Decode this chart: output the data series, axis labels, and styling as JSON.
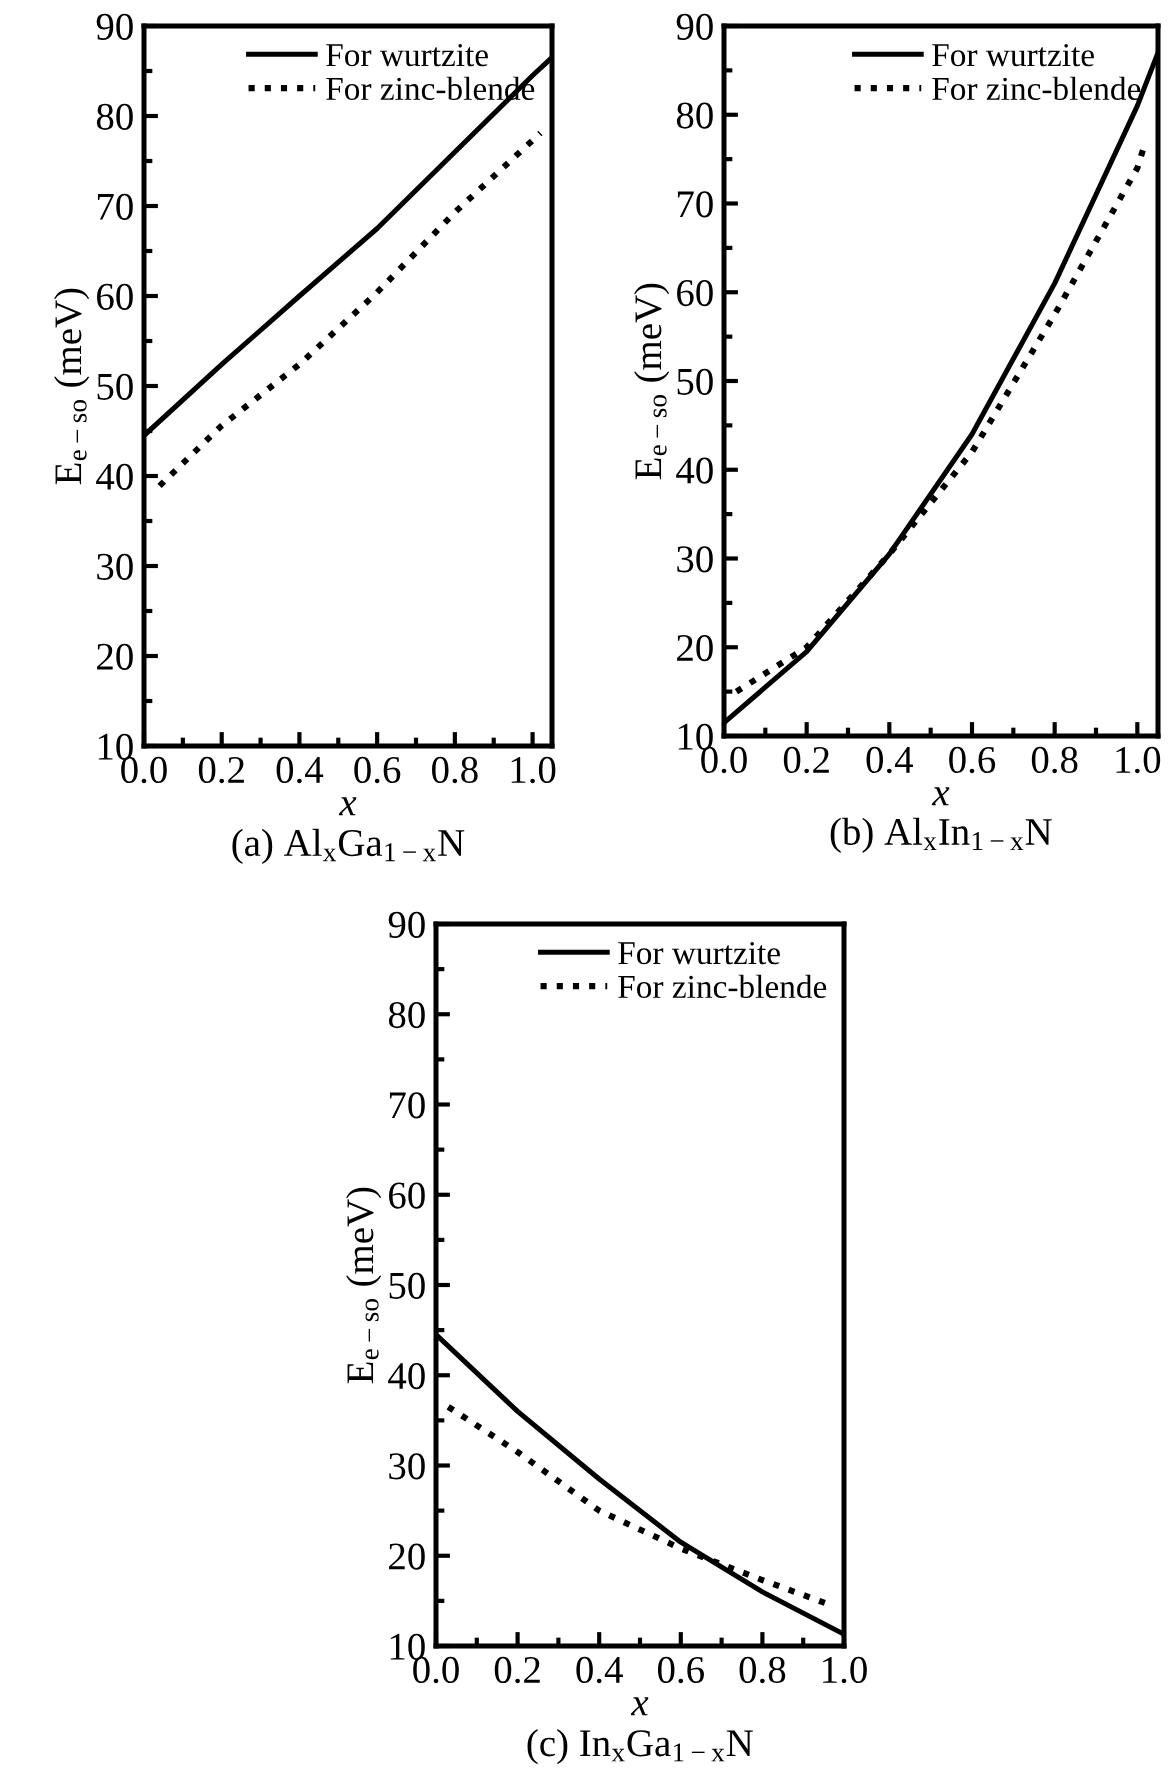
{
  "chart_data": [
    {
      "type": "line",
      "title": "(a) Al$_{x}$Ga$_{1−x}$N",
      "xlabel": "x",
      "ylabel": "E$_{e−so}$ (meV)",
      "xlim": [
        0,
        1.05
      ],
      "ylim": [
        10,
        90
      ],
      "xticks": [
        {
          "value": 0,
          "label": "0.0"
        },
        {
          "value": 0.1,
          "label": null
        },
        {
          "value": 0.2,
          "label": "0.2"
        },
        {
          "value": 0.3,
          "label": null
        },
        {
          "value": 0.4,
          "label": "0.4"
        },
        {
          "value": 0.5,
          "label": null
        },
        {
          "value": 0.6,
          "label": "0.6"
        },
        {
          "value": 0.7,
          "label": null
        },
        {
          "value": 0.8,
          "label": "0.8"
        },
        {
          "value": 0.9,
          "label": null
        },
        {
          "value": 1.0,
          "label": "1.0"
        }
      ],
      "yticks": [
        10,
        {
          "value": 15,
          "label": null
        },
        20,
        {
          "value": 25,
          "label": null
        },
        30,
        {
          "value": 35,
          "label": null
        },
        40,
        {
          "value": 45,
          "label": null
        },
        50,
        {
          "value": 55,
          "label": null
        },
        60,
        {
          "value": 65,
          "label": null
        },
        70,
        {
          "value": 75,
          "label": null
        },
        80,
        {
          "value": 85,
          "label": null
        },
        90
      ],
      "legend": "top right",
      "grid": false,
      "series": [
        {
          "name": "For wurtzite",
          "color": "#000000",
          "line_style": "solid",
          "x": [
            0,
            0.2,
            0.4,
            0.6,
            0.8,
            1.0,
            1.05
          ],
          "values": [
            44.5,
            52.4,
            60,
            67.5,
            76,
            84.5,
            86.5
          ]
        },
        {
          "name": "For zinc-blende",
          "color": "#000000",
          "line_style": "dotted",
          "x": [
            0.04,
            0.2,
            0.4,
            0.6,
            0.8,
            1.02
          ],
          "values": [
            38.9,
            45.6,
            52.4,
            60.4,
            69.3,
            78.1
          ]
        }
      ]
    },
    {
      "type": "line",
      "title": "(b) Al$_{x}$In$_{1−x}$N",
      "xlabel": "x",
      "ylabel": "E$_{e−so}$ (meV)",
      "xlim": [
        0,
        1.05
      ],
      "ylim": [
        10,
        90
      ],
      "xticks": [
        {
          "value": 0,
          "label": "0.0"
        },
        {
          "value": 0.1,
          "label": null
        },
        {
          "value": 0.2,
          "label": "0.2"
        },
        {
          "value": 0.3,
          "label": null
        },
        {
          "value": 0.4,
          "label": "0.4"
        },
        {
          "value": 0.5,
          "label": null
        },
        {
          "value": 0.6,
          "label": "0.6"
        },
        {
          "value": 0.7,
          "label": null
        },
        {
          "value": 0.8,
          "label": "0.8"
        },
        {
          "value": 0.9,
          "label": null
        },
        {
          "value": 1.0,
          "label": "1.0"
        }
      ],
      "yticks": [
        10,
        {
          "value": 15,
          "label": null
        },
        20,
        {
          "value": 25,
          "label": null
        },
        30,
        {
          "value": 35,
          "label": null
        },
        40,
        {
          "value": 45,
          "label": null
        },
        50,
        {
          "value": 55,
          "label": null
        },
        60,
        {
          "value": 65,
          "label": null
        },
        70,
        {
          "value": 75,
          "label": null
        },
        80,
        {
          "value": 85,
          "label": null
        },
        90
      ],
      "legend": "top right",
      "grid": false,
      "series": [
        {
          "name": "For wurtzite",
          "color": "#000000",
          "line_style": "solid",
          "x": [
            0,
            0.2,
            0.4,
            0.6,
            0.8,
            1.0,
            1.05
          ],
          "values": [
            11.5,
            19.5,
            30.5,
            44,
            61,
            81,
            87
          ]
        },
        {
          "name": "For zinc-blende",
          "color": "#000000",
          "line_style": "dotted",
          "x": [
            0.03,
            0.2,
            0.4,
            0.6,
            0.8,
            1.0,
            1.02
          ],
          "values": [
            15,
            20,
            30.5,
            42,
            57.5,
            74,
            77
          ]
        }
      ]
    },
    {
      "type": "line",
      "title": "(c) In$_{x}$Ga$_{1−x}$N",
      "xlabel": "x",
      "ylabel": "E$_{e−so}$ (meV)",
      "xlim": [
        0,
        1.0
      ],
      "ylim": [
        10,
        90
      ],
      "xticks": [
        {
          "value": 0,
          "label": "0.0"
        },
        {
          "value": 0.1,
          "label": null
        },
        {
          "value": 0.2,
          "label": "0.2"
        },
        {
          "value": 0.3,
          "label": null
        },
        {
          "value": 0.4,
          "label": "0.4"
        },
        {
          "value": 0.5,
          "label": null
        },
        {
          "value": 0.6,
          "label": "0.6"
        },
        {
          "value": 0.7,
          "label": null
        },
        {
          "value": 0.8,
          "label": "0.8"
        },
        {
          "value": 0.9,
          "label": null
        },
        {
          "value": 1.0,
          "label": "1.0"
        }
      ],
      "yticks": [
        10,
        {
          "value": 15,
          "label": null
        },
        20,
        {
          "value": 25,
          "label": null
        },
        30,
        {
          "value": 35,
          "label": null
        },
        40,
        {
          "value": 45,
          "label": null
        },
        50,
        {
          "value": 55,
          "label": null
        },
        60,
        {
          "value": 65,
          "label": null
        },
        70,
        {
          "value": 75,
          "label": null
        },
        80,
        {
          "value": 85,
          "label": null
        },
        90
      ],
      "legend": "top right",
      "grid": false,
      "series": [
        {
          "name": "For wurtzite",
          "color": "#000000",
          "line_style": "solid",
          "x": [
            0,
            0.2,
            0.4,
            0.6,
            0.8,
            1.0
          ],
          "values": [
            44.5,
            36,
            28.5,
            21.5,
            16,
            11.3
          ]
        },
        {
          "name": "For zinc-blende",
          "color": "#000000",
          "line_style": "dotted",
          "x": [
            0.03,
            0.2,
            0.4,
            0.6,
            0.8,
            0.97
          ],
          "values": [
            36.5,
            31.5,
            25,
            20.8,
            17.3,
            14.5
          ]
        }
      ]
    }
  ]
}
